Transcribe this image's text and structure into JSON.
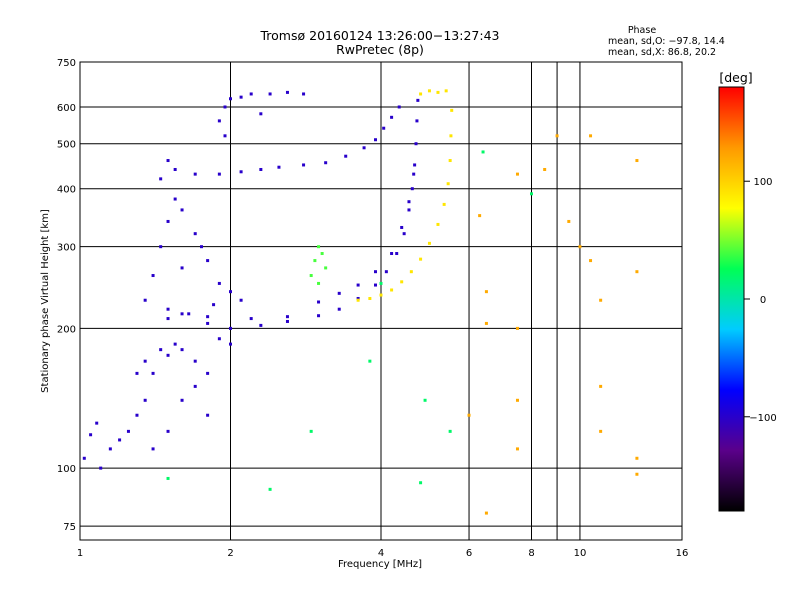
{
  "chart_data": {
    "type": "scatter",
    "title": "Tromsø 20160124 13:26:00−13:27:43",
    "subtitle": "RwPretec (8p)",
    "xlabel": "Frequency [MHz]",
    "ylabel": "Stationary phase Virtual Height [km]",
    "x_scale": "log",
    "y_scale": "log",
    "xlim": [
      1,
      16
    ],
    "ylim": [
      70,
      750
    ],
    "x_ticks": [
      "1",
      "2",
      "4",
      "6",
      "8",
      "10",
      "16"
    ],
    "y_ticks": [
      "75",
      "100",
      "200",
      "300",
      "400",
      "500",
      "600",
      "750"
    ],
    "grid": true,
    "phase_legend": {
      "heading": "Phase",
      "line1": "mean, sd,O: −97.8, 14.4",
      "line2": "mean, sd,X:  86.8, 20.2"
    },
    "colorbar": {
      "label": "[deg]",
      "min": -180,
      "max": 180,
      "ticks": [
        "100",
        "0",
        "−100"
      ],
      "colors": [
        "#000000",
        "#5a008a",
        "#0000ff",
        "#00ccff",
        "#00ff55",
        "#ffff00",
        "#ff9900",
        "#ff0000"
      ]
    },
    "series": [
      {
        "phase_deg": -100,
        "trace": "low-frequency scatter cloud",
        "points": [
          [
            1.02,
            105
          ],
          [
            1.05,
            118
          ],
          [
            1.08,
            125
          ],
          [
            1.1,
            100
          ],
          [
            1.15,
            110
          ],
          [
            1.2,
            115
          ],
          [
            1.25,
            120
          ],
          [
            1.3,
            130
          ],
          [
            1.35,
            140
          ],
          [
            1.3,
            160
          ],
          [
            1.35,
            170
          ],
          [
            1.4,
            160
          ],
          [
            1.45,
            180
          ],
          [
            1.5,
            175
          ],
          [
            1.55,
            185
          ],
          [
            1.6,
            180
          ],
          [
            1.7,
            170
          ],
          [
            1.8,
            160
          ],
          [
            1.9,
            190
          ],
          [
            2.0,
            185
          ],
          [
            1.4,
            110
          ],
          [
            1.5,
            120
          ],
          [
            1.6,
            140
          ],
          [
            1.7,
            150
          ],
          [
            1.8,
            130
          ]
        ]
      },
      {
        "phase_deg": -100,
        "trace": "low-frequency F-region cloud",
        "points": [
          [
            1.35,
            230
          ],
          [
            1.4,
            260
          ],
          [
            1.45,
            300
          ],
          [
            1.5,
            340
          ],
          [
            1.55,
            380
          ],
          [
            1.6,
            360
          ],
          [
            1.7,
            320
          ],
          [
            1.8,
            280
          ],
          [
            1.9,
            250
          ],
          [
            2.0,
            240
          ],
          [
            1.45,
            420
          ],
          [
            1.5,
            460
          ],
          [
            1.55,
            440
          ],
          [
            1.7,
            430
          ],
          [
            2.1,
            230
          ],
          [
            1.6,
            270
          ],
          [
            1.75,
            300
          ],
          [
            1.5,
            210
          ],
          [
            1.65,
            215
          ],
          [
            1.85,
            225
          ]
        ]
      },
      {
        "phase_deg": -100,
        "trace": "O-mode lower trace",
        "points": [
          [
            1.6,
            215
          ],
          [
            1.8,
            205
          ],
          [
            2.0,
            200
          ],
          [
            2.3,
            203
          ],
          [
            2.6,
            207
          ],
          [
            3.0,
            213
          ],
          [
            3.3,
            220
          ],
          [
            3.6,
            232
          ],
          [
            3.9,
            248
          ],
          [
            4.1,
            265
          ],
          [
            4.3,
            290
          ],
          [
            4.45,
            320
          ],
          [
            4.55,
            360
          ],
          [
            4.62,
            400
          ],
          [
            4.67,
            450
          ],
          [
            4.7,
            500
          ],
          [
            4.72,
            560
          ],
          [
            4.74,
            620
          ]
        ]
      },
      {
        "phase_deg": -100,
        "trace": "O-mode second-hop trace",
        "points": [
          [
            1.5,
            220
          ],
          [
            1.8,
            212
          ],
          [
            2.2,
            210
          ],
          [
            2.6,
            212
          ],
          [
            3.0,
            228
          ],
          [
            3.3,
            238
          ],
          [
            3.6,
            248
          ],
          [
            3.9,
            265
          ],
          [
            4.2,
            290
          ],
          [
            4.4,
            330
          ],
          [
            4.55,
            375
          ],
          [
            4.65,
            430
          ]
        ]
      },
      {
        "phase_deg": -100,
        "trace": "upper echo band",
        "points": [
          [
            1.9,
            430
          ],
          [
            2.1,
            435
          ],
          [
            2.3,
            440
          ],
          [
            2.5,
            445
          ],
          [
            2.8,
            450
          ],
          [
            3.1,
            455
          ],
          [
            3.4,
            470
          ],
          [
            3.7,
            490
          ],
          [
            3.9,
            510
          ],
          [
            4.05,
            540
          ],
          [
            4.2,
            570
          ],
          [
            4.35,
            600
          ]
        ]
      },
      {
        "phase_deg": -100,
        "trace": "topside scatter",
        "points": [
          [
            1.9,
            560
          ],
          [
            1.95,
            600
          ],
          [
            2.0,
            625
          ],
          [
            2.1,
            630
          ],
          [
            2.2,
            640
          ],
          [
            2.4,
            640
          ],
          [
            2.6,
            645
          ],
          [
            2.8,
            640
          ],
          [
            1.95,
            520
          ],
          [
            2.3,
            580
          ]
        ]
      },
      {
        "phase_deg": 90,
        "trace": "X-mode trace",
        "points": [
          [
            3.6,
            230
          ],
          [
            3.8,
            232
          ],
          [
            4.0,
            236
          ],
          [
            4.2,
            242
          ],
          [
            4.4,
            252
          ],
          [
            4.6,
            265
          ],
          [
            4.8,
            282
          ],
          [
            5.0,
            305
          ],
          [
            5.2,
            335
          ],
          [
            5.35,
            370
          ],
          [
            5.45,
            410
          ],
          [
            5.5,
            460
          ],
          [
            5.52,
            520
          ],
          [
            5.54,
            590
          ],
          [
            4.8,
            640
          ],
          [
            5.0,
            650
          ],
          [
            5.2,
            645
          ],
          [
            5.4,
            650
          ]
        ]
      },
      {
        "phase_deg": 40,
        "trace": "green patch",
        "points": [
          [
            2.9,
            260
          ],
          [
            2.95,
            280
          ],
          [
            3.0,
            300
          ],
          [
            3.05,
            290
          ],
          [
            3.1,
            270
          ],
          [
            3.0,
            250
          ]
        ]
      },
      {
        "phase_deg": 120,
        "trace": "sparse high-frequency echoes",
        "points": [
          [
            6.5,
            240
          ],
          [
            6.5,
            205
          ],
          [
            7.5,
            430
          ],
          [
            7.5,
            200
          ],
          [
            7.5,
            140
          ],
          [
            7.5,
            110
          ],
          [
            8.5,
            440
          ],
          [
            9.0,
            520
          ],
          [
            9.5,
            340
          ],
          [
            10.0,
            300
          ],
          [
            10.5,
            520
          ],
          [
            10.5,
            280
          ],
          [
            11.0,
            230
          ],
          [
            11.0,
            150
          ],
          [
            11.0,
            120
          ],
          [
            13.0,
            460
          ],
          [
            13.0,
            265
          ],
          [
            13.0,
            105
          ],
          [
            13.0,
            97
          ],
          [
            6.5,
            80
          ],
          [
            6.3,
            350
          ],
          [
            6.0,
            130
          ]
        ]
      },
      {
        "phase_deg": 20,
        "trace": "scattered low echoes",
        "points": [
          [
            2.4,
            90
          ],
          [
            1.5,
            95
          ],
          [
            4.0,
            250
          ],
          [
            3.8,
            170
          ],
          [
            2.9,
            120
          ],
          [
            4.8,
            93
          ],
          [
            4.9,
            140
          ],
          [
            5.5,
            120
          ],
          [
            6.4,
            480
          ],
          [
            8.0,
            390
          ]
        ]
      }
    ]
  }
}
